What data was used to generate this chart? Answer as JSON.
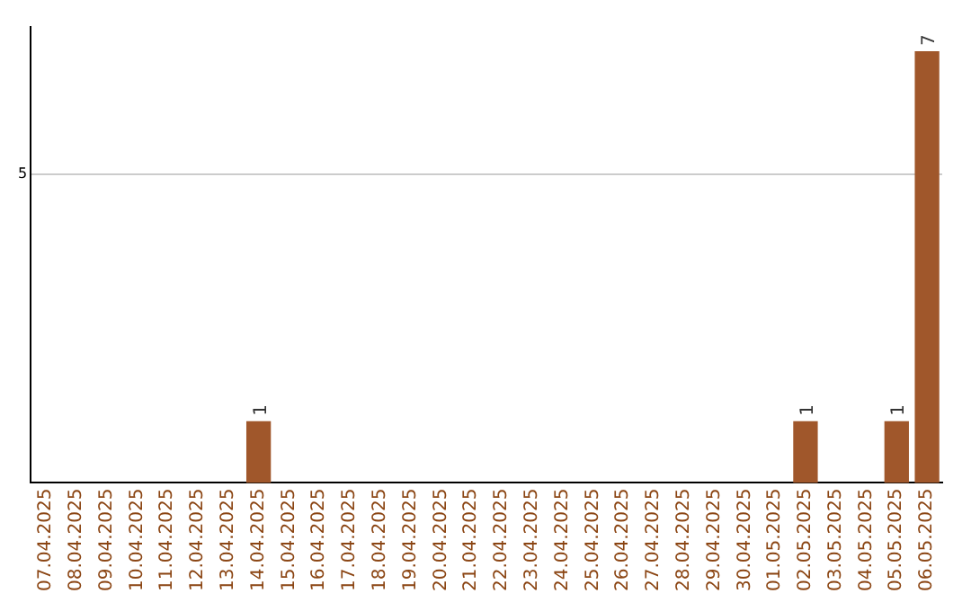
{
  "chart_data": {
    "type": "bar",
    "categories": [
      "07.04.2025",
      "08.04.2025",
      "09.04.2025",
      "10.04.2025",
      "11.04.2025",
      "12.04.2025",
      "13.04.2025",
      "14.04.2025",
      "15.04.2025",
      "16.04.2025",
      "17.04.2025",
      "18.04.2025",
      "19.04.2025",
      "20.04.2025",
      "21.04.2025",
      "22.04.2025",
      "23.04.2025",
      "24.04.2025",
      "25.04.2025",
      "26.04.2025",
      "27.04.2025",
      "28.04.2025",
      "29.04.2025",
      "30.04.2025",
      "01.05.2025",
      "02.05.2025",
      "03.05.2025",
      "04.05.2025",
      "05.05.2025",
      "06.05.2025"
    ],
    "values": [
      0,
      0,
      0,
      0,
      0,
      0,
      0,
      1,
      0,
      0,
      0,
      0,
      0,
      0,
      0,
      0,
      0,
      0,
      0,
      0,
      0,
      0,
      0,
      0,
      0,
      1,
      0,
      0,
      1,
      7
    ],
    "value_labels": [
      null,
      null,
      null,
      null,
      null,
      null,
      null,
      "1",
      null,
      null,
      null,
      null,
      null,
      null,
      null,
      null,
      null,
      null,
      null,
      null,
      null,
      null,
      null,
      null,
      null,
      "1",
      null,
      null,
      "1",
      "7"
    ],
    "color": "#a0572b",
    "ylim": [
      0,
      7.4
    ],
    "yticks": [
      5
    ],
    "grid": "y",
    "legend": false
  }
}
